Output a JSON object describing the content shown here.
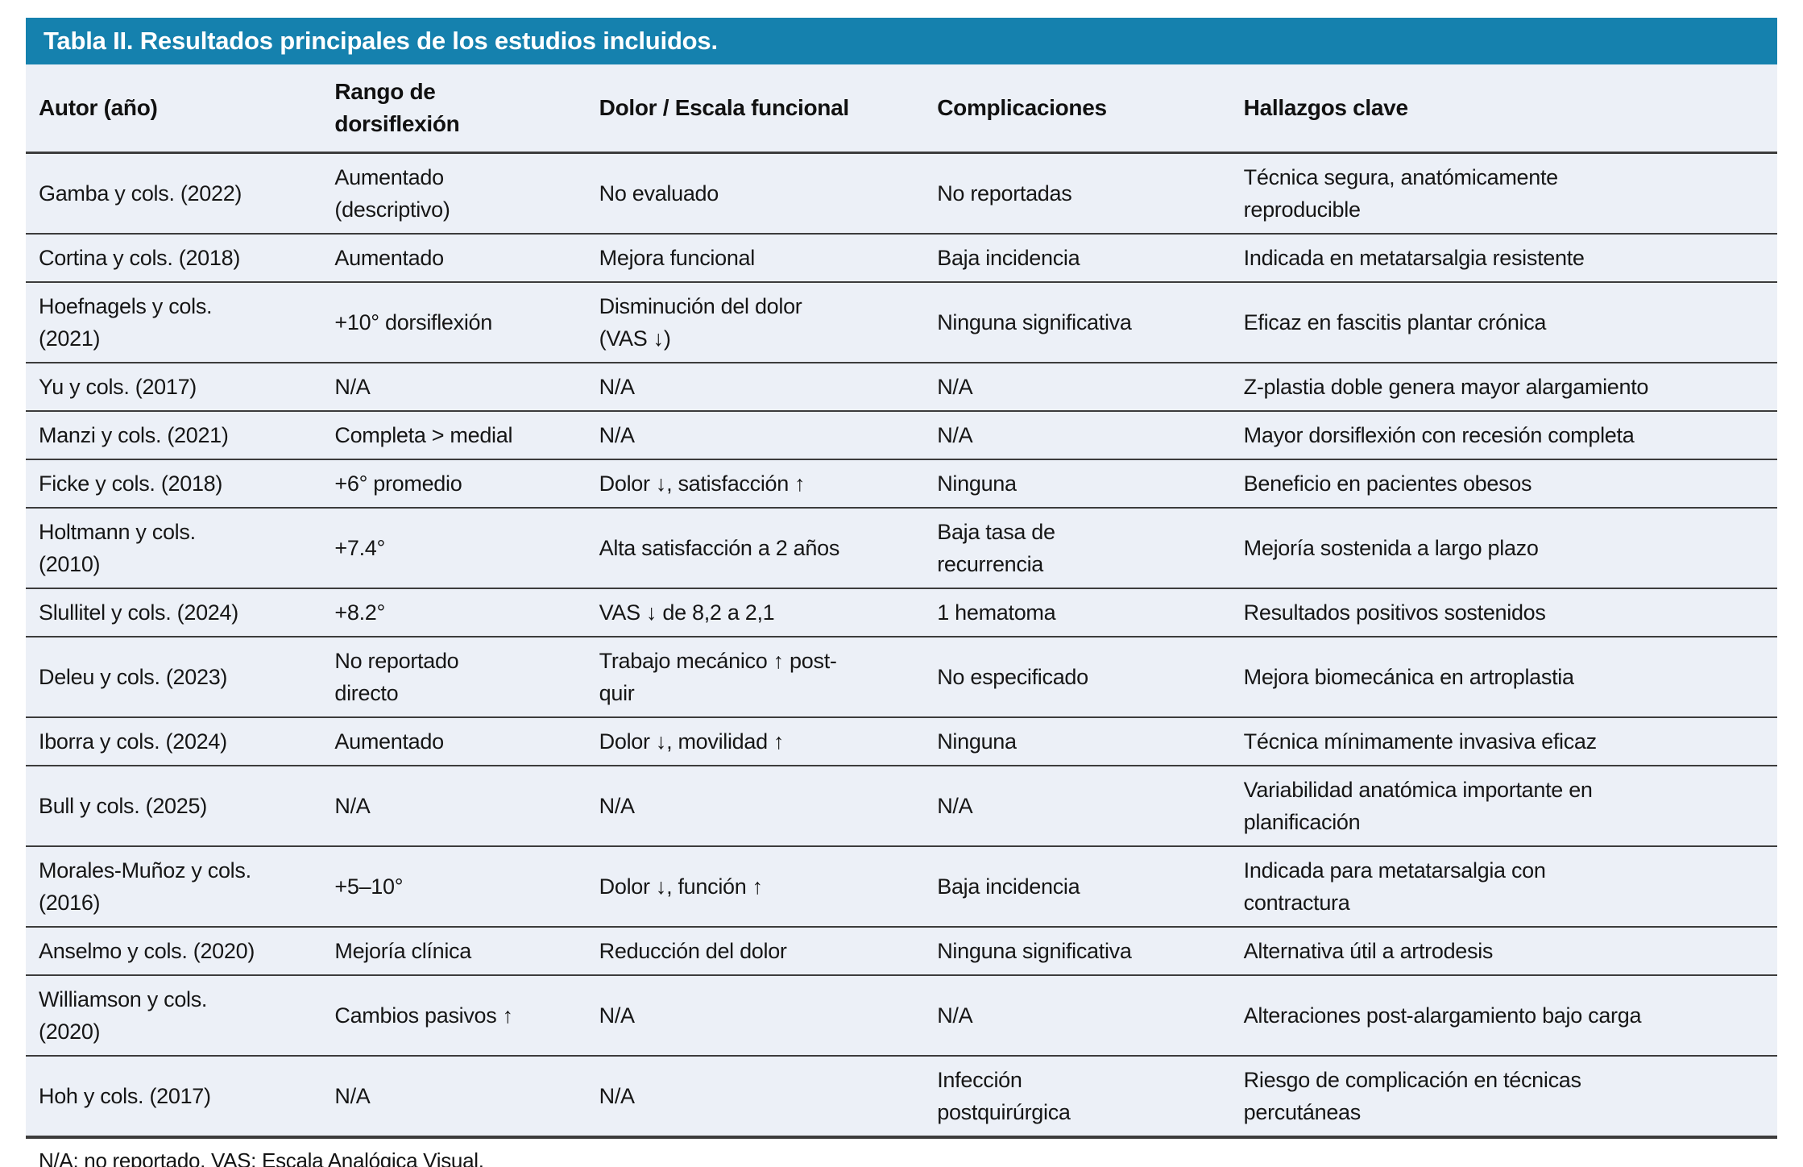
{
  "colors": {
    "accent_blue": "#1581AE",
    "body_background": "#ECF0F7",
    "divider": "#3C3C3C",
    "title_text": "#FFFFFF",
    "body_text": "#161616"
  },
  "table": {
    "title": "Tabla II. Resultados principales de los estudios incluidos.",
    "columns": [
      "Autor (año)",
      "Rango de\ndorsiflexión",
      "Dolor / Escala funcional",
      "Complicaciones",
      "Hallazgos clave"
    ],
    "rows": [
      [
        "Gamba y cols. (2022)",
        "Aumentado\n(descriptivo)",
        "No evaluado",
        "No reportadas",
        "Técnica segura, anatómicamente\nreproducible"
      ],
      [
        "Cortina y cols. (2018)",
        "Aumentado",
        "Mejora funcional",
        "Baja incidencia",
        "Indicada en metatarsalgia resistente"
      ],
      [
        "Hoefnagels y cols.\n(2021)",
        "+10° dorsiflexión",
        "Disminución del dolor\n(VAS ↓)",
        "Ninguna significativa",
        "Eficaz en fascitis plantar crónica"
      ],
      [
        "Yu y cols. (2017)",
        "N/A",
        "N/A",
        "N/A",
        "Z-plastia doble genera mayor alargamiento"
      ],
      [
        "Manzi y cols. (2021)",
        "Completa > medial",
        "N/A",
        "N/A",
        "Mayor dorsiflexión con recesión completa"
      ],
      [
        "Ficke y cols. (2018)",
        "+6° promedio",
        "Dolor ↓, satisfacción ↑",
        "Ninguna",
        "Beneficio en pacientes obesos"
      ],
      [
        "Holtmann y cols.\n(2010)",
        "+7.4°",
        "Alta satisfacción a 2 años",
        "Baja tasa de\nrecurrencia",
        "Mejoría sostenida a largo plazo"
      ],
      [
        "Slullitel y cols. (2024)",
        "+8.2°",
        "VAS ↓ de 8,2 a 2,1",
        "1 hematoma",
        "Resultados positivos sostenidos"
      ],
      [
        "Deleu y cols. (2023)",
        "No reportado\ndirecto",
        "Trabajo mecánico ↑ post-\nquir",
        "No especificado",
        "Mejora biomecánica en artroplastia"
      ],
      [
        "Iborra y cols. (2024)",
        "Aumentado",
        "Dolor ↓, movilidad ↑",
        "Ninguna",
        "Técnica mínimamente invasiva eficaz"
      ],
      [
        "Bull y cols. (2025)",
        "N/A",
        "N/A",
        "N/A",
        "Variabilidad anatómica importante en\nplanificación"
      ],
      [
        "Morales-Muñoz y cols.\n(2016)",
        "+5–10°",
        "Dolor ↓, función ↑",
        "Baja incidencia",
        "Indicada para metatarsalgia con\ncontractura"
      ],
      [
        "Anselmo y cols. (2020)",
        "Mejoría clínica",
        "Reducción del dolor",
        "Ninguna significativa",
        "Alternativa útil a artrodesis"
      ],
      [
        "Williamson y cols.\n(2020)",
        "Cambios pasivos ↑",
        "N/A",
        "N/A",
        "Alteraciones post-alargamiento bajo carga"
      ],
      [
        "Hoh y cols. (2017)",
        "N/A",
        "N/A",
        "Infección\npostquirúrgica",
        "Riesgo de complicación en técnicas\npercutáneas"
      ]
    ],
    "footnote": "N/A: no reportado. VAS: Escala Analógica Visual."
  }
}
